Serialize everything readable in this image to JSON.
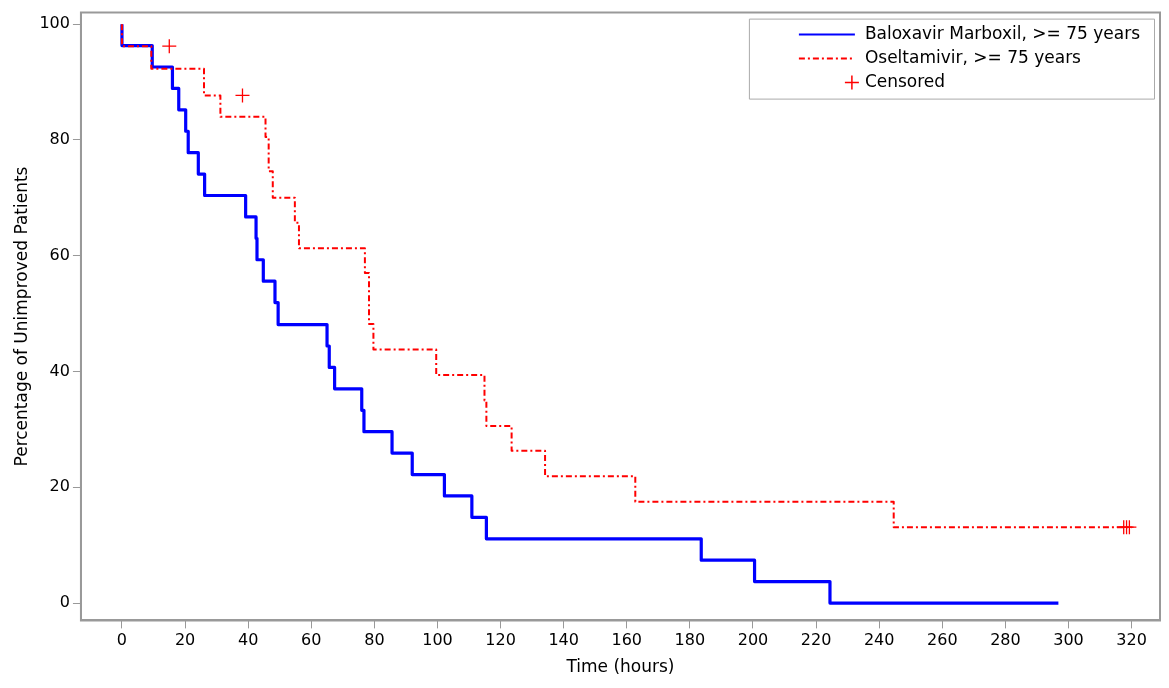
{
  "chart_data": {
    "type": "step",
    "xlabel": "Time (hours)",
    "ylabel": "Percentage of Unimproved Patients",
    "xlim": [
      -13,
      329
    ],
    "ylim": [
      -3,
      102
    ],
    "xticks": [
      0,
      20,
      40,
      60,
      80,
      100,
      120,
      140,
      160,
      180,
      200,
      220,
      240,
      260,
      280,
      300,
      320
    ],
    "yticks": [
      0,
      20,
      40,
      60,
      80,
      100
    ],
    "grid": false,
    "legend": "top right",
    "marker": "none",
    "series": [
      {
        "name": "Baloxavir Marboxil, >= 75 years",
        "color": "#0000ff",
        "line_style": "solid",
        "x": [
          0,
          9.6,
          16,
          18,
          20.2,
          21,
          24.2,
          26.2,
          39.2,
          42.5,
          42.8,
          44.8,
          48.5,
          49.5,
          65,
          65.7,
          67.4,
          76,
          76.7,
          85.6,
          92,
          102.2,
          110.9,
          115.5,
          183.6,
          200.5,
          224.4,
          296.8
        ],
        "values": [
          100,
          96.3,
          92.6,
          88.9,
          85.2,
          81.5,
          77.8,
          74.1,
          70.4,
          66.7,
          63,
          59.3,
          55.6,
          51.9,
          48.1,
          44.4,
          40.7,
          37,
          33.3,
          29.6,
          25.9,
          22.2,
          18.5,
          14.8,
          11.1,
          7.4,
          3.7,
          0
        ]
      },
      {
        "name": "Oseltamivir, >= 75 years",
        "color": "#ff0000",
        "line_style": "dashed",
        "x": [
          0,
          9.3,
          26,
          31.2,
          45.5,
          46.5,
          47.8,
          54.8,
          56.1,
          77,
          78.3,
          79.7,
          99.6,
          114.9,
          115.5,
          123.5,
          134.1,
          162.7,
          244.6,
          246.6,
          320
        ],
        "values": [
          100,
          96.2,
          92.3,
          87.7,
          84,
          80.5,
          74.6,
          70,
          65.7,
          61.3,
          57,
          48.2,
          43.8,
          39.4,
          35,
          30.6,
          26.3,
          21.9,
          17.5,
          13.1,
          13.1
        ]
      },
      {
        "name": "Censored",
        "type": "scatter",
        "marker": "cross",
        "color": "#ff0000",
        "x": [
          15,
          38.2,
          317.5,
          318.4,
          319.3
        ],
        "values": [
          96.2,
          87.7,
          13.1,
          13.1,
          13.1
        ]
      }
    ]
  }
}
